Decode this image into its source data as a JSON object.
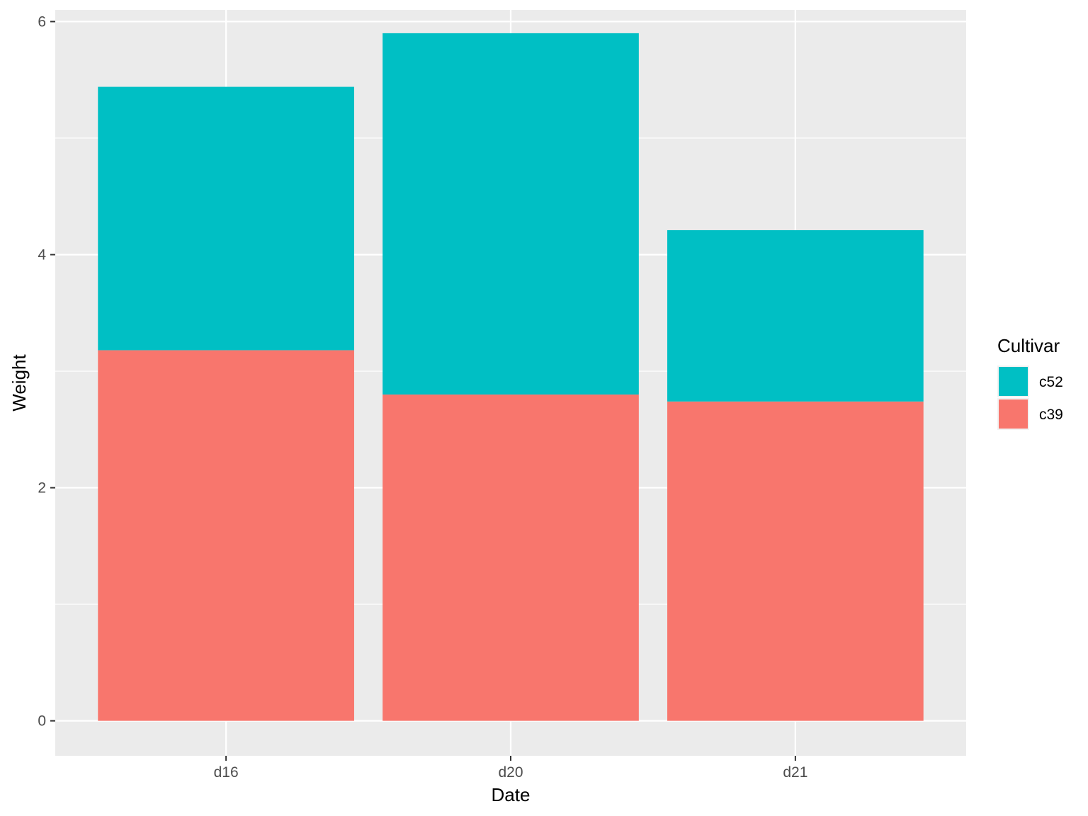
{
  "chart_data": {
    "type": "bar",
    "stacked": true,
    "title": "",
    "xlabel": "Date",
    "ylabel": "Weight",
    "categories": [
      "d16",
      "d20",
      "d21"
    ],
    "series": [
      {
        "name": "c39",
        "values": [
          3.18,
          2.8,
          2.74
        ],
        "color": "#F8766D"
      },
      {
        "name": "c52",
        "values": [
          2.26,
          3.1,
          1.47
        ],
        "color": "#00BFC4"
      }
    ],
    "ylim": [
      -0.3,
      6.1
    ],
    "yticks": [
      0,
      2,
      4,
      6
    ],
    "ytick_labels": [
      "0",
      "2",
      "4",
      "6"
    ],
    "grid": true,
    "panel_background": "#EBEBEB",
    "grid_color": "#FFFFFF",
    "legend": {
      "title": "Cultivar",
      "position": "right",
      "entries": [
        {
          "label": "c52",
          "color": "#00BFC4"
        },
        {
          "label": "c39",
          "color": "#F8766D"
        }
      ]
    }
  }
}
